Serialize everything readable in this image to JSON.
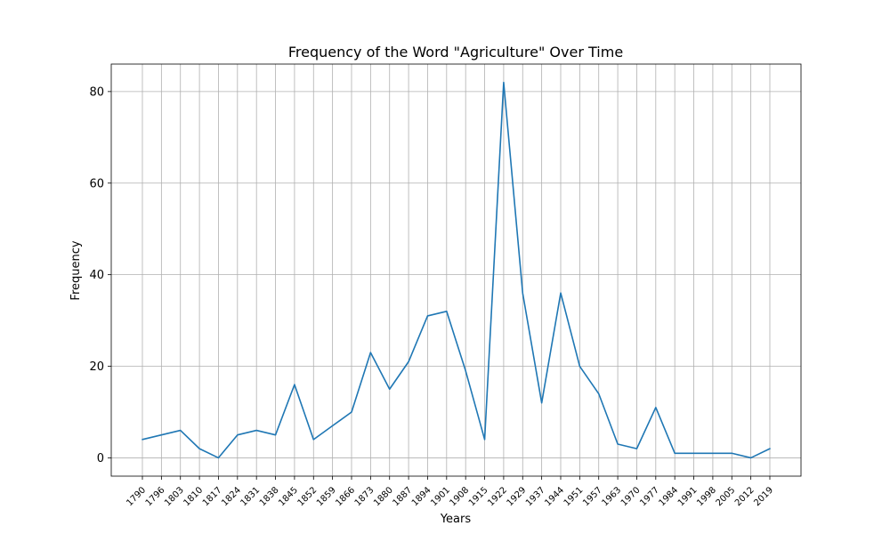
{
  "chart_data": {
    "type": "line",
    "title": "Frequency of the Word \"Agriculture\" Over Time",
    "xlabel": "Years",
    "ylabel": "Frequency",
    "ylim": [
      -4,
      86
    ],
    "yticks": [
      0,
      20,
      40,
      60,
      80
    ],
    "grid": true,
    "legend": "none",
    "line_color": "#1f77b4",
    "x": [
      "1790",
      "1796",
      "1803",
      "1810",
      "1817",
      "1824",
      "1831",
      "1838",
      "1845",
      "1852",
      "1859",
      "1866",
      "1873",
      "1880",
      "1887",
      "1894",
      "1901",
      "1908",
      "1915",
      "1922",
      "1929",
      "1937",
      "1944",
      "1951",
      "1957",
      "1963",
      "1970",
      "1977",
      "1984",
      "1991",
      "1998",
      "2005",
      "2012",
      "2019"
    ],
    "series": [
      {
        "values": [
          4,
          5,
          6,
          2,
          0,
          5,
          6,
          5,
          16,
          4,
          7,
          10,
          23,
          15,
          21,
          31,
          32,
          19,
          4,
          82,
          36,
          12,
          36,
          20,
          14,
          3,
          2,
          11,
          1,
          1,
          1,
          1,
          0,
          2
        ]
      }
    ]
  }
}
